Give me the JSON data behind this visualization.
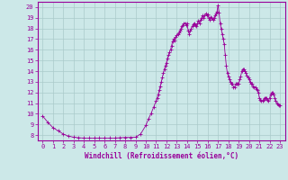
{
  "xlabel": "Windchill (Refroidissement éolien,°C)",
  "xlim": [
    -0.5,
    23.5
  ],
  "ylim": [
    7.5,
    20.5
  ],
  "yticks": [
    8,
    9,
    10,
    11,
    12,
    13,
    14,
    15,
    16,
    17,
    18,
    19,
    20
  ],
  "xticks": [
    0,
    1,
    2,
    3,
    4,
    5,
    6,
    7,
    8,
    9,
    10,
    11,
    12,
    13,
    14,
    15,
    16,
    17,
    18,
    19,
    20,
    21,
    22,
    23
  ],
  "line_color": "#990099",
  "marker": "+",
  "bg_color": "#cce8e8",
  "grid_color": "#aacaca",
  "x": [
    0,
    0.5,
    1,
    1.5,
    2,
    2.5,
    3,
    3.5,
    4,
    4.5,
    5,
    5.5,
    6,
    6.5,
    7,
    7.5,
    8,
    8.5,
    9,
    9.5,
    10,
    10.25,
    10.5,
    10.75,
    11,
    11.1,
    11.2,
    11.3,
    11.4,
    11.5,
    11.6,
    11.7,
    11.8,
    11.9,
    12,
    12.1,
    12.2,
    12.3,
    12.4,
    12.5,
    12.6,
    12.7,
    12.8,
    12.9,
    13,
    13.1,
    13.2,
    13.3,
    13.4,
    13.5,
    13.6,
    13.7,
    13.8,
    13.9,
    14,
    14.1,
    14.2,
    14.3,
    14.4,
    14.5,
    14.6,
    14.7,
    14.8,
    14.9,
    15,
    15.1,
    15.2,
    15.3,
    15.4,
    15.5,
    15.6,
    15.7,
    15.8,
    15.9,
    16,
    16.1,
    16.2,
    16.3,
    16.4,
    16.5,
    16.6,
    16.7,
    16.8,
    16.9,
    17,
    17.1,
    17.2,
    17.3,
    17.4,
    17.5,
    17.6,
    17.7,
    17.8,
    17.9,
    18,
    18.1,
    18.2,
    18.3,
    18.4,
    18.5,
    18.6,
    18.7,
    18.8,
    18.9,
    19,
    19.1,
    19.2,
    19.3,
    19.4,
    19.5,
    19.6,
    19.7,
    19.8,
    19.9,
    20,
    20.1,
    20.2,
    20.3,
    20.4,
    20.5,
    20.6,
    20.7,
    20.8,
    20.9,
    21,
    21.1,
    21.2,
    21.3,
    21.4,
    21.5,
    21.6,
    21.7,
    21.8,
    21.9,
    22,
    22.1,
    22.2,
    22.3,
    22.4,
    22.5,
    22.6,
    22.7,
    22.8,
    22.9,
    23
  ],
  "y": [
    9.8,
    9.2,
    8.7,
    8.4,
    8.1,
    7.9,
    7.8,
    7.75,
    7.72,
    7.72,
    7.72,
    7.72,
    7.72,
    7.72,
    7.72,
    7.75,
    7.78,
    7.78,
    7.8,
    8.1,
    8.9,
    9.5,
    10.0,
    10.6,
    11.2,
    11.5,
    11.8,
    12.2,
    12.6,
    13.0,
    13.4,
    13.8,
    14.2,
    14.5,
    14.8,
    15.2,
    15.5,
    15.8,
    16.0,
    16.4,
    16.8,
    17.0,
    16.9,
    17.2,
    17.4,
    17.5,
    17.6,
    17.8,
    18.0,
    18.2,
    18.3,
    18.5,
    18.5,
    18.3,
    18.5,
    17.8,
    17.5,
    17.8,
    18.0,
    18.2,
    18.4,
    18.5,
    18.3,
    18.2,
    18.5,
    18.7,
    18.5,
    18.8,
    19.0,
    19.2,
    19.0,
    19.2,
    19.4,
    19.2,
    19.3,
    19.0,
    18.8,
    19.1,
    19.0,
    18.8,
    19.0,
    19.2,
    19.4,
    19.6,
    20.2,
    19.5,
    18.5,
    18.0,
    17.5,
    17.0,
    16.5,
    15.5,
    14.5,
    13.8,
    13.5,
    13.2,
    13.0,
    12.8,
    12.8,
    12.5,
    12.5,
    12.8,
    12.8,
    12.8,
    12.8,
    13.2,
    13.5,
    14.0,
    14.2,
    14.2,
    14.0,
    13.8,
    13.6,
    13.4,
    13.2,
    13.0,
    12.8,
    12.8,
    12.6,
    12.5,
    12.5,
    12.3,
    12.2,
    12.0,
    11.5,
    11.3,
    11.2,
    11.2,
    11.3,
    11.5,
    11.5,
    11.5,
    11.3,
    11.2,
    11.5,
    11.8,
    12.0,
    12.0,
    11.8,
    11.5,
    11.2,
    11.0,
    10.9,
    10.8,
    10.8
  ]
}
